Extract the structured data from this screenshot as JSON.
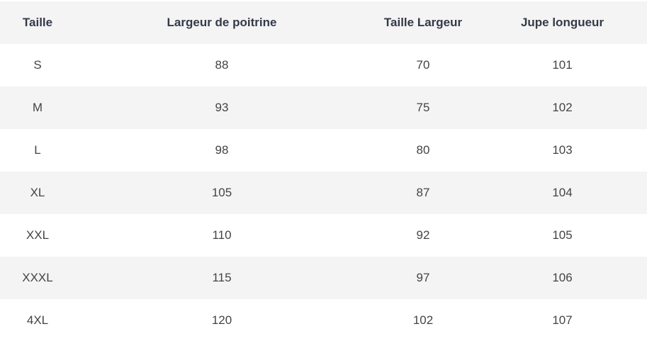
{
  "table": {
    "headers": [
      "Taille",
      "Largeur de poitrine",
      "Taille Largeur",
      "Jupe longueur"
    ],
    "rows": [
      [
        "S",
        "88",
        "70",
        "101"
      ],
      [
        "M",
        "93",
        "75",
        "102"
      ],
      [
        "L",
        "98",
        "80",
        "103"
      ],
      [
        "XL",
        "105",
        "87",
        "104"
      ],
      [
        "XXL",
        "110",
        "92",
        "105"
      ],
      [
        "XXXL",
        "115",
        "97",
        "106"
      ],
      [
        "4XL",
        "120",
        "102",
        "107"
      ]
    ]
  },
  "colors": {
    "row_alt": "#f4f4f4",
    "header_text": "#333a48",
    "cell_text": "#444444"
  }
}
